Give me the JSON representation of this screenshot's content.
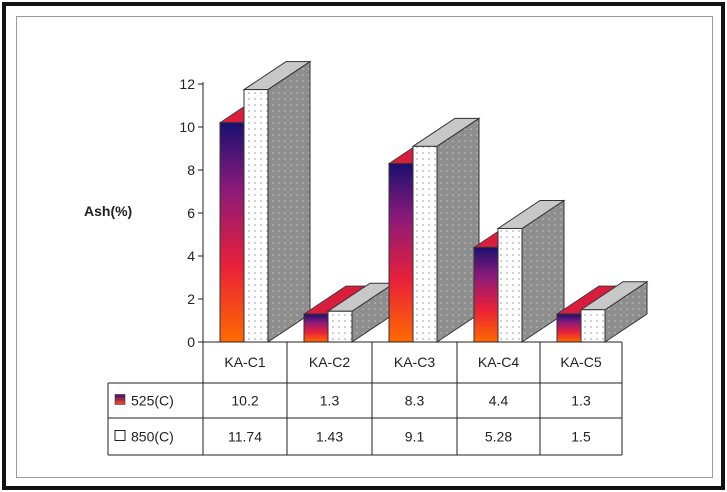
{
  "chart_data": {
    "type": "bar",
    "ylabel": "Ash(%)",
    "ylim": [
      0,
      12
    ],
    "yticks": [
      0,
      2,
      4,
      6,
      8,
      10,
      12
    ],
    "categories": [
      "KA-C1",
      "KA-C2",
      "KA-C3",
      "KA-C4",
      "KA-C5"
    ],
    "series": [
      {
        "name": "525(C)",
        "values": [
          10.2,
          1.3,
          8.3,
          4.4,
          1.3
        ],
        "value_labels": [
          "10.2",
          "1.3",
          "8.3",
          "4.4",
          "1.3"
        ],
        "style": "gradient"
      },
      {
        "name": "850(C)",
        "values": [
          11.74,
          1.43,
          9.1,
          5.28,
          1.5
        ],
        "value_labels": [
          "11.74",
          "1.43",
          "9.1",
          "5.28",
          "1.5"
        ],
        "style": "dotted"
      }
    ],
    "grid": false,
    "legend": "data-table-left",
    "colors": {
      "gradient_top": "#1a1070",
      "gradient_mid": "#c0206a",
      "gradient_bottom": "#ff6a00",
      "side": "#909090",
      "top": "#c8c8c8",
      "dots": "#9a9a9a"
    }
  }
}
